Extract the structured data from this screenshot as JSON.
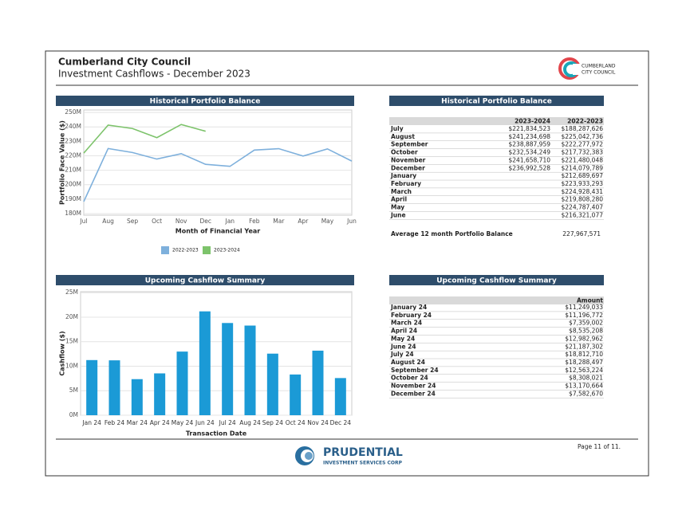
{
  "header": {
    "title": "Cumberland City Council",
    "subtitle": "Investment Cashflows - December 2023",
    "logo_text": [
      "CUMBERLAND",
      "CITY COUNCIL"
    ]
  },
  "chart_data": [
    {
      "type": "line",
      "title": "Historical Portfolio Balance",
      "x_label": "Month of Financial Year",
      "y_label": "Portfolio Face Value ($)",
      "categories": [
        "Jul",
        "Aug",
        "Sep",
        "Oct",
        "Nov",
        "Dec",
        "Jan",
        "Feb",
        "Mar",
        "Apr",
        "May",
        "Jun"
      ],
      "series": [
        {
          "name": "2022-2023",
          "color": "#7eb0dc",
          "values": [
            188.287626,
            225.042736,
            222.277972,
            217.732383,
            221.480048,
            214.079789,
            212.689697,
            223.933293,
            224.928431,
            219.80828,
            224.787407,
            216.321077
          ]
        },
        {
          "name": "2023-2024",
          "color": "#7dc36b",
          "values": [
            221.834523,
            241.234698,
            238.887959,
            232.534249,
            241.65871,
            236.992528,
            null,
            null,
            null,
            null,
            null,
            null
          ]
        }
      ],
      "ylim": [
        178.9,
        251.7
      ],
      "yticks": [
        {
          "value": 180,
          "label": "180M"
        },
        {
          "value": 190,
          "label": "190M"
        },
        {
          "value": 200,
          "label": "200M"
        },
        {
          "value": 210,
          "label": "210M"
        },
        {
          "value": 220,
          "label": "220M"
        },
        {
          "value": 230,
          "label": "230M"
        },
        {
          "value": 240,
          "label": "240M"
        },
        {
          "value": 250,
          "label": "250M"
        }
      ],
      "grid": true,
      "legend": "bottom"
    },
    {
      "type": "bar",
      "title": "Upcoming Cashflow Summary",
      "x_label": "Transaction Date",
      "y_label": "Cashflow ($)",
      "categories": [
        "Jan 24",
        "Feb 24",
        "Mar 24",
        "Apr 24",
        "May 24",
        "Jun 24",
        "Jul 24",
        "Aug 24",
        "Sep 24",
        "Oct 24",
        "Nov 24",
        "Dec 24"
      ],
      "values": [
        11.249033,
        11.196772,
        7.359002,
        8.535208,
        12.982962,
        21.187302,
        18.81271,
        18.288497,
        12.563224,
        8.308021,
        13.170664,
        7.58267
      ],
      "color": "#1b9ad6",
      "ylim": [
        0,
        25.2
      ],
      "yticks": [
        {
          "value": 0,
          "label": "0M"
        },
        {
          "value": 5,
          "label": "5M"
        },
        {
          "value": 10,
          "label": "10M"
        },
        {
          "value": 15,
          "label": "15M"
        },
        {
          "value": 20,
          "label": "20M"
        },
        {
          "value": 25,
          "label": "25M"
        }
      ],
      "grid": true
    }
  ],
  "tables": [
    {
      "title": "Historical Portfolio Balance",
      "columns": [
        "2023-2024",
        "2022-2023"
      ],
      "rows": [
        [
          "July",
          "$221,834,523",
          "$188,287,626"
        ],
        [
          "August",
          "$241,234,698",
          "$225,042,736"
        ],
        [
          "September",
          "$238,887,959",
          "$222,277,972"
        ],
        [
          "October",
          "$232,534,249",
          "$217,732,383"
        ],
        [
          "November",
          "$241,658,710",
          "$221,480,048"
        ],
        [
          "December",
          "$236,992,528",
          "$214,079,789"
        ],
        [
          "January",
          null,
          "$212,689,697"
        ],
        [
          "February",
          null,
          "$223,933,293"
        ],
        [
          "March",
          null,
          "$224,928,431"
        ],
        [
          "April",
          null,
          "$219,808,280"
        ],
        [
          "May",
          null,
          "$224,787,407"
        ],
        [
          "June",
          null,
          "$216,321,077"
        ]
      ],
      "summary": {
        "label": "Average 12 month Portfolio Balance",
        "value": "227,967,571"
      }
    },
    {
      "title": "Upcoming Cashflow Summary",
      "columns": [
        "Amount"
      ],
      "rows": [
        [
          "January 24",
          "$11,249,033"
        ],
        [
          "February 24",
          "$11,196,772"
        ],
        [
          "March 24",
          "$7,359,002"
        ],
        [
          "April 24",
          "$8,535,208"
        ],
        [
          "May 24",
          "$12,982,962"
        ],
        [
          "June 24",
          "$21,187,302"
        ],
        [
          "July 24",
          "$18,812,710"
        ],
        [
          "August 24",
          "$18,288,497"
        ],
        [
          "September 24",
          "$12,563,224"
        ],
        [
          "October 24",
          "$8,308,021"
        ],
        [
          "November 24",
          "$13,170,664"
        ],
        [
          "December 24",
          "$7,582,670"
        ]
      ]
    }
  ],
  "footer": {
    "logo_name": "PRUDENTIAL",
    "logo_sub": "INVESTMENT SERVICES CORP",
    "page": "Page 11 of 11."
  }
}
